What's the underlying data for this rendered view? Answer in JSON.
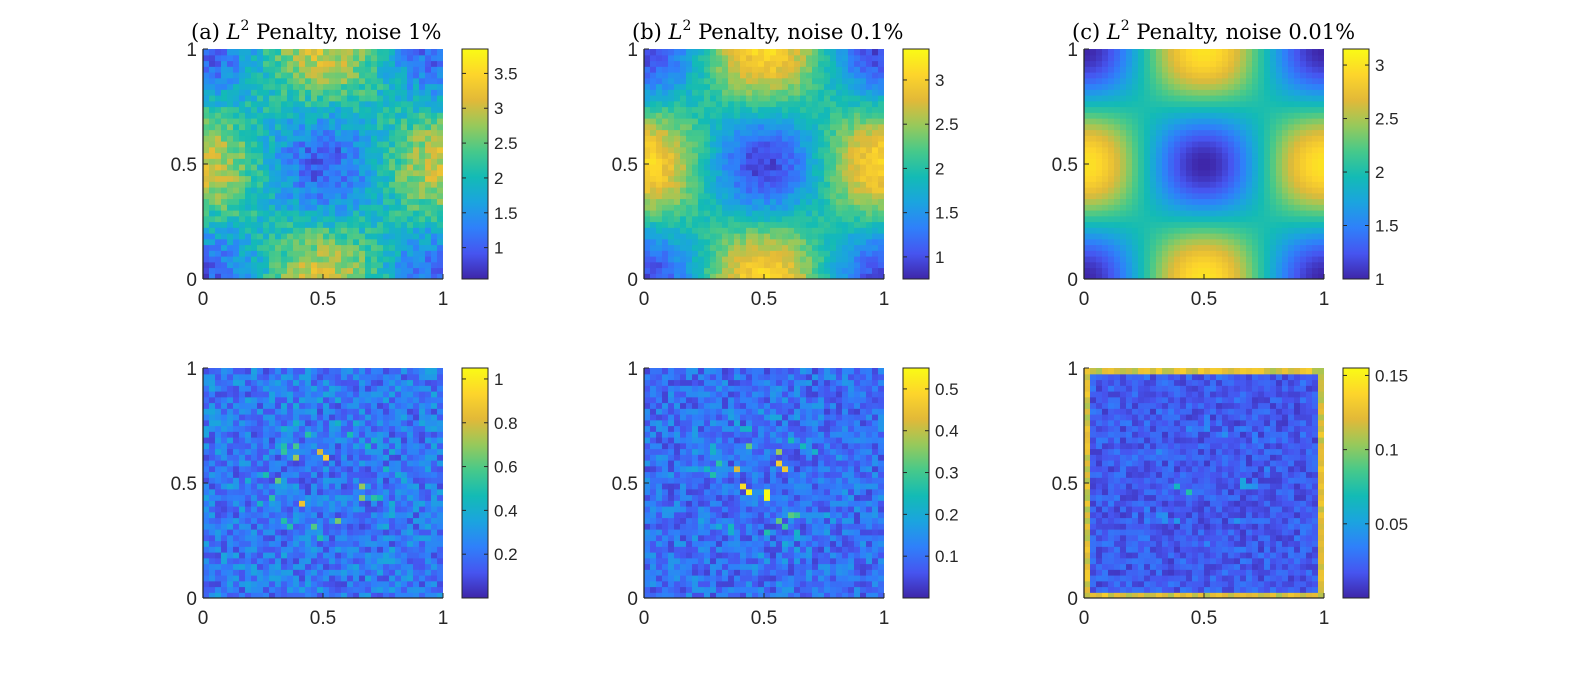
{
  "figure": {
    "colors": {
      "axis": "#262626",
      "colormap": [
        "#3e26a8",
        "#4655f0",
        "#2f80fa",
        "#1ba4df",
        "#13bbb5",
        "#47c98a",
        "#97c95b",
        "#e2b938",
        "#fdd52b",
        "#f9fb15"
      ]
    }
  },
  "chart_data": [
    {
      "type": "heatmap",
      "panel": "top-left",
      "title": {
        "prefix": "(a) ",
        "symbol": "L",
        "exponent": "2",
        "suffix": " Penalty, noise 1%"
      },
      "xlim": [
        0,
        1
      ],
      "ylim": [
        0,
        1
      ],
      "xticks": [
        "0",
        "0.5",
        "1"
      ],
      "yticks": [
        "0",
        "0.5",
        "1"
      ],
      "field": {
        "base": 2.0,
        "amplitude": 1.0,
        "noise": 0.35
      },
      "colorbar": {
        "range": [
          0.55,
          3.85
        ],
        "ticks": [
          1,
          1.5,
          2,
          2.5,
          3,
          3.5
        ],
        "tick_labels": [
          "1",
          "1.5",
          "2",
          "2.5",
          "3",
          "3.5"
        ]
      }
    },
    {
      "type": "heatmap",
      "panel": "top-middle",
      "title": {
        "prefix": "(b) ",
        "symbol": "L",
        "exponent": "2",
        "suffix": " Penalty, noise 0.1%"
      },
      "xlim": [
        0,
        1
      ],
      "ylim": [
        0,
        1
      ],
      "xticks": [
        "0",
        "0.5",
        "1"
      ],
      "yticks": [
        "0",
        "0.5",
        "1"
      ],
      "field": {
        "base": 2.0,
        "amplitude": 1.05,
        "noise": 0.15
      },
      "colorbar": {
        "range": [
          0.75,
          3.35
        ],
        "ticks": [
          1,
          1.5,
          2,
          2.5,
          3
        ],
        "tick_labels": [
          "1",
          "1.5",
          "2",
          "2.5",
          "3"
        ]
      }
    },
    {
      "type": "heatmap",
      "panel": "top-right",
      "title": {
        "prefix": "(c) ",
        "symbol": "L",
        "exponent": "2",
        "suffix": " Penalty, noise 0.01%"
      },
      "xlim": [
        0,
        1
      ],
      "ylim": [
        0,
        1
      ],
      "xticks": [
        "0",
        "0.5",
        "1"
      ],
      "yticks": [
        "0",
        "0.5",
        "1"
      ],
      "field": {
        "base": 2.0,
        "amplitude": 1.0,
        "noise": 0.0
      },
      "colorbar": {
        "range": [
          1.0,
          3.15
        ],
        "ticks": [
          1,
          1.5,
          2,
          2.5,
          3
        ],
        "tick_labels": [
          "1",
          "1.5",
          "2",
          "2.5",
          "3"
        ]
      }
    },
    {
      "type": "heatmap",
      "panel": "bottom-left",
      "title": null,
      "xlim": [
        0,
        1
      ],
      "ylim": [
        0,
        1
      ],
      "xticks": [
        "0",
        "0.5",
        "1"
      ],
      "yticks": [
        "0",
        "0.5",
        "1"
      ],
      "field": {
        "error_level": 0.22,
        "error_peak": 0.85,
        "edge": 0.0
      },
      "colorbar": {
        "range": [
          0.0,
          1.05
        ],
        "ticks": [
          0.2,
          0.4,
          0.6,
          0.8,
          1
        ],
        "tick_labels": [
          "0.2",
          "0.4",
          "0.6",
          "0.8",
          "1"
        ]
      }
    },
    {
      "type": "heatmap",
      "panel": "bottom-middle",
      "title": null,
      "xlim": [
        0,
        1
      ],
      "ylim": [
        0,
        1
      ],
      "xticks": [
        "0",
        "0.5",
        "1"
      ],
      "yticks": [
        "0",
        "0.5",
        "1"
      ],
      "field": {
        "error_level": 0.1,
        "error_peak": 0.45,
        "edge": 0.0
      },
      "colorbar": {
        "range": [
          0.0,
          0.55
        ],
        "ticks": [
          0.1,
          0.2,
          0.3,
          0.4,
          0.5
        ],
        "tick_labels": [
          "0.1",
          "0.2",
          "0.3",
          "0.4",
          "0.5"
        ]
      }
    },
    {
      "type": "heatmap",
      "panel": "bottom-right",
      "title": null,
      "xlim": [
        0,
        1
      ],
      "ylim": [
        0,
        1
      ],
      "xticks": [
        "0",
        "0.5",
        "1"
      ],
      "yticks": [
        "0",
        "0.5",
        "1"
      ],
      "field": {
        "error_level": 0.02,
        "error_peak": 0.05,
        "edge": 0.1
      },
      "colorbar": {
        "range": [
          0.0,
          0.155
        ],
        "ticks": [
          0.05,
          0.1,
          0.15
        ],
        "tick_labels": [
          "0.05",
          "0.1",
          "0.15"
        ]
      }
    }
  ]
}
